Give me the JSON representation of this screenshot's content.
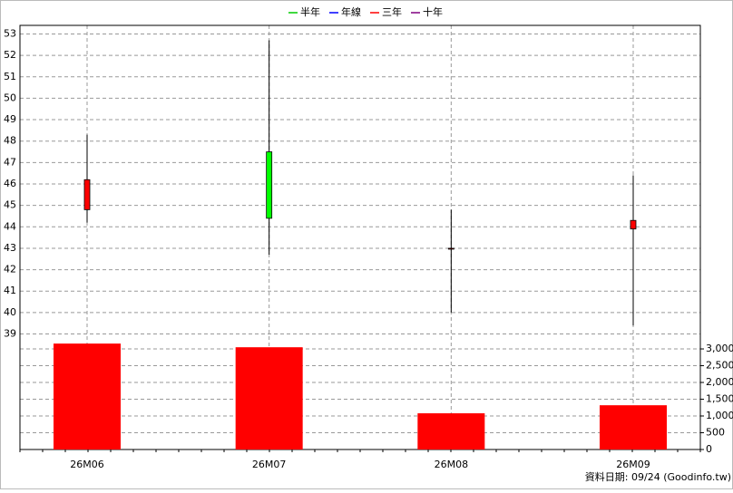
{
  "chart_data": {
    "type": "candlestick",
    "legend": [
      {
        "name": "半年",
        "color": "#00cc00"
      },
      {
        "name": "年線",
        "color": "#0000ff"
      },
      {
        "name": "三年",
        "color": "#ff0000"
      },
      {
        "name": "十年",
        "color": "#800080"
      }
    ],
    "categories": [
      "26M06",
      "26M07",
      "26M08",
      "26M09"
    ],
    "open": [
      44.8,
      47.5,
      43.0,
      43.9
    ],
    "high": [
      48.3,
      52.7,
      44.8,
      46.4
    ],
    "low": [
      44.2,
      42.7,
      40.0,
      39.4
    ],
    "close": [
      46.2,
      44.4,
      43.0,
      44.3
    ],
    "up_color": "#ff0000",
    "down_color": "#00ff00",
    "volume": [
      3160,
      3050,
      1080,
      1320
    ],
    "volume_color": "#ff0000",
    "ylim": [
      38.6,
      53.4
    ],
    "yticks": [
      39,
      40,
      41,
      42,
      43,
      44,
      45,
      46,
      47,
      48,
      49,
      50,
      51,
      52,
      53
    ],
    "y2lim": [
      0,
      3190
    ],
    "y2ticks": [
      0,
      500,
      {
        "value": 1000,
        "label": "1,000"
      },
      {
        "value": 1500,
        "label": "1,500"
      },
      {
        "value": 2000,
        "label": "2,000"
      },
      {
        "value": 2500,
        "label": "2,500"
      },
      {
        "value": 3000,
        "label": "3,000"
      }
    ],
    "grid": true,
    "source": "資料日期: 09/24  (Goodinfo.tw)"
  }
}
